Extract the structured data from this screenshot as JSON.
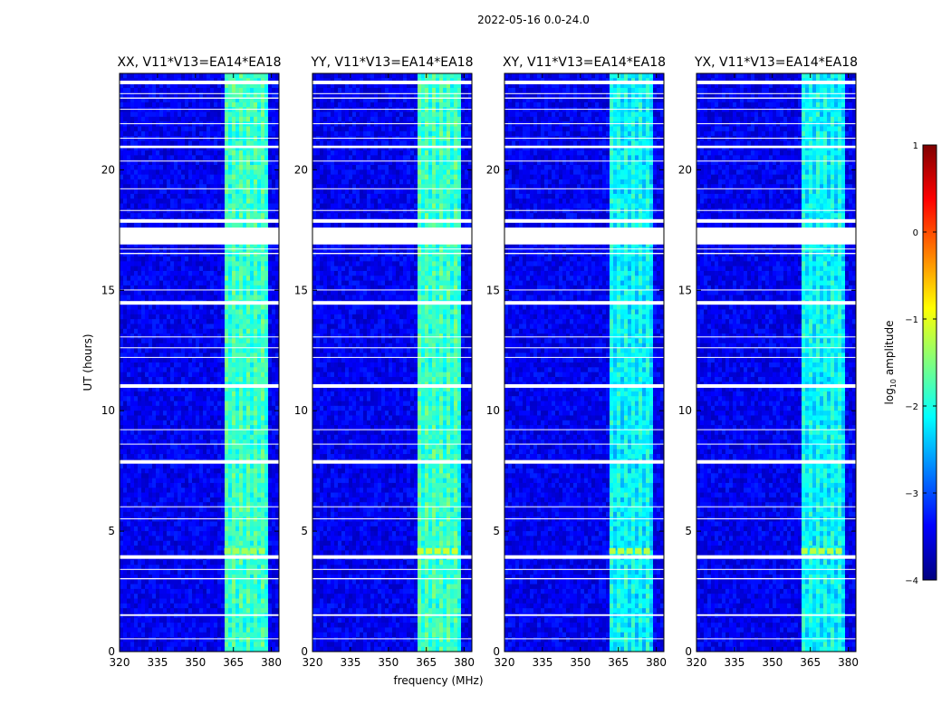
{
  "figure": {
    "suptitle": "2022-05-16 0.0-24.0",
    "shared_xlabel": "frequency (MHz)",
    "shared_ylabel": "UT (hours)"
  },
  "colors": {
    "background": "#ffffff",
    "axes_edge": "#000000",
    "flag_color": "#ffffff",
    "colormap_stops": [
      "#00007f",
      "#0000ff",
      "#007fff",
      "#00ffff",
      "#7fff7f",
      "#ffff00",
      "#ff7f00",
      "#ff0000",
      "#7f0000"
    ]
  },
  "chart_data": [
    {
      "type": "heatmap",
      "title": "XX, V11*V13=EA14*EA18",
      "xlabel": "",
      "ylabel": "UT (hours)",
      "xlim": [
        320,
        383
      ],
      "ylim": [
        0,
        24
      ],
      "xticks": [
        320,
        335,
        350,
        365,
        380
      ],
      "yticks": [
        0,
        5,
        10,
        15,
        20
      ],
      "xtick_labels": [
        "320",
        "335",
        "350",
        "365",
        "380"
      ],
      "ytick_labels": [
        "0",
        "5",
        "10",
        "15",
        "20"
      ],
      "rfi_band_mhz": [
        361,
        378
      ],
      "rfi_level_log10": -1.5,
      "sat_block_ut": [
        4.05,
        4.3
      ],
      "sat_level_log10": -1.3
    },
    {
      "type": "heatmap",
      "title": "YY, V11*V13=EA14*EA18",
      "xlabel": "frequency (MHz)",
      "ylabel": "",
      "xlim": [
        320,
        383
      ],
      "ylim": [
        0,
        24
      ],
      "xticks": [
        320,
        335,
        350,
        365,
        380
      ],
      "yticks": [
        0,
        5,
        10,
        15,
        20
      ],
      "xtick_labels": [
        "320",
        "335",
        "350",
        "365",
        "380"
      ],
      "ytick_labels": [
        "0",
        "5",
        "10",
        "15",
        "20"
      ],
      "rfi_band_mhz": [
        361,
        378
      ],
      "rfi_level_log10": -1.5,
      "sat_block_ut": [
        4.05,
        4.3
      ],
      "sat_level_log10": -1.1
    },
    {
      "type": "heatmap",
      "title": "XY, V11*V13=EA14*EA18",
      "xlabel": "",
      "ylabel": "",
      "xlim": [
        320,
        383
      ],
      "ylim": [
        0,
        24
      ],
      "xticks": [
        320,
        335,
        350,
        365,
        380
      ],
      "yticks": [
        0,
        5,
        10,
        15,
        20
      ],
      "xtick_labels": [
        "320",
        "335",
        "350",
        "365",
        "380"
      ],
      "ytick_labels": [
        "0",
        "5",
        "10",
        "15",
        "20"
      ],
      "rfi_band_mhz": [
        361,
        378
      ],
      "rfi_level_log10": -1.8,
      "sat_block_ut": [
        4.05,
        4.3
      ],
      "sat_level_log10": -1.2
    },
    {
      "type": "heatmap",
      "title": "YX, V11*V13=EA14*EA18",
      "xlabel": "",
      "ylabel": "",
      "xlim": [
        320,
        383
      ],
      "ylim": [
        0,
        24
      ],
      "xticks": [
        320,
        335,
        350,
        365,
        380
      ],
      "yticks": [
        0,
        5,
        10,
        15,
        20
      ],
      "xtick_labels": [
        "320",
        "335",
        "350",
        "365",
        "380"
      ],
      "ytick_labels": [
        "0",
        "5",
        "10",
        "15",
        "20"
      ],
      "rfi_band_mhz": [
        361,
        378
      ],
      "rfi_level_log10": -1.8,
      "sat_block_ut": [
        4.05,
        4.3
      ],
      "sat_level_log10": -1.2
    }
  ],
  "flag_bands_ut": [
    [
      0.52,
      0.55
    ],
    [
      1.48,
      1.55
    ],
    [
      3.0,
      3.05
    ],
    [
      3.4,
      3.43
    ],
    [
      3.85,
      4.0
    ],
    [
      5.5,
      5.53
    ],
    [
      6.0,
      6.03
    ],
    [
      7.8,
      7.95
    ],
    [
      8.6,
      8.63
    ],
    [
      9.2,
      9.23
    ],
    [
      10.95,
      11.1
    ],
    [
      12.2,
      12.23
    ],
    [
      12.6,
      12.63
    ],
    [
      13.05,
      13.08
    ],
    [
      14.4,
      14.55
    ],
    [
      15.0,
      15.03
    ],
    [
      16.5,
      16.55
    ],
    [
      16.7,
      16.73
    ],
    [
      16.9,
      17.6
    ],
    [
      17.8,
      17.95
    ],
    [
      18.3,
      18.33
    ],
    [
      19.2,
      19.23
    ],
    [
      20.35,
      20.38
    ],
    [
      20.9,
      21.0
    ],
    [
      21.3,
      21.33
    ],
    [
      21.9,
      21.93
    ],
    [
      22.5,
      22.53
    ],
    [
      22.95,
      23.0
    ],
    [
      23.15,
      23.18
    ],
    [
      23.55,
      23.7
    ]
  ],
  "colorbar": {
    "label": "log10 amplitude",
    "label_prefix": "log",
    "label_subscript": "10",
    "label_suffix": " amplitude",
    "vmin": -4,
    "vmax": 1,
    "ticks": [
      1,
      0,
      -1,
      -2,
      -3,
      -4
    ],
    "tick_labels": [
      "1",
      "0",
      "−1",
      "−2",
      "−3",
      "−4"
    ]
  }
}
